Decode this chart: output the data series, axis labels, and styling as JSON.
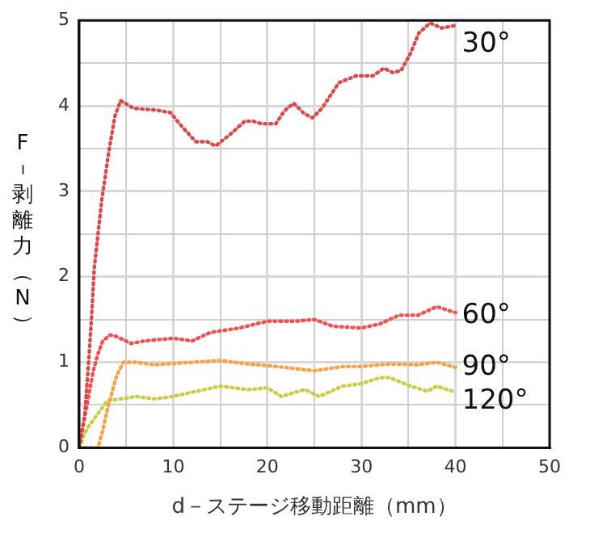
{
  "chart_data": {
    "type": "line",
    "xlabel": "d－ステージ移動距離（mm）",
    "ylabel": "F－剥離力（N）",
    "xlim": [
      0,
      50
    ],
    "xticks": [
      0,
      {
        "value": 5,
        "label": null
      },
      10,
      {
        "value": 15,
        "label": null
      },
      20,
      {
        "value": 25,
        "label": null
      },
      30,
      {
        "value": 35,
        "label": null
      },
      40,
      {
        "value": 45,
        "label": null
      },
      50
    ],
    "ylim": [
      0,
      5
    ],
    "yticks": [
      0,
      {
        "value": 0.5,
        "label": null
      },
      1,
      {
        "value": 1.5,
        "label": null
      },
      2,
      {
        "value": 2.5,
        "label": null
      },
      3,
      {
        "value": 3.5,
        "label": null
      },
      4,
      {
        "value": 4.5,
        "label": null
      },
      5
    ],
    "grid": true,
    "legend": false,
    "line_style": "dotted",
    "marker": "none",
    "series": [
      {
        "name": "30°",
        "color": "#e04848",
        "x": [
          0,
          0.6,
          1,
          1.3,
          1.6,
          2,
          2.4,
          2.8,
          3.2,
          3.8,
          4.4,
          5.8,
          8.2,
          9.7,
          10.9,
          12.4,
          13.6,
          14.5,
          16.1,
          17.6,
          18.5,
          19.4,
          20.9,
          21.8,
          22.8,
          23.9,
          24.8,
          25.8,
          27.6,
          29.4,
          31.2,
          32.4,
          33.3,
          34.2,
          35.2,
          36.1,
          37.3,
          38.5,
          40
        ],
        "values": [
          0,
          0.4,
          1,
          1.5,
          2.1,
          2.5,
          2.9,
          3.2,
          3.5,
          3.88,
          4.06,
          3.97,
          3.95,
          3.92,
          3.76,
          3.58,
          3.58,
          3.53,
          3.67,
          3.82,
          3.82,
          3.79,
          3.79,
          3.94,
          4.03,
          3.91,
          3.86,
          3.97,
          4.27,
          4.35,
          4.35,
          4.44,
          4.39,
          4.41,
          4.61,
          4.85,
          4.97,
          4.91,
          4.94
        ]
      },
      {
        "name": "60°",
        "color": "#ff4a4a",
        "x": [
          0,
          0.5,
          1,
          1.5,
          2,
          2.5,
          3.3,
          4,
          5.5,
          7,
          10,
          12,
          14,
          17,
          20,
          23,
          25,
          27,
          30,
          32,
          34,
          36,
          38,
          40
        ],
        "values": [
          0,
          0.3,
          0.6,
          0.9,
          1.1,
          1.25,
          1.32,
          1.3,
          1.22,
          1.25,
          1.28,
          1.25,
          1.35,
          1.4,
          1.48,
          1.48,
          1.5,
          1.42,
          1.4,
          1.45,
          1.55,
          1.55,
          1.65,
          1.58
        ]
      },
      {
        "name": "90°",
        "color": "#ffa040",
        "x": [
          0,
          2,
          2.5,
          3,
          3.5,
          4,
          4.7,
          6,
          8,
          12,
          15,
          18,
          21,
          25,
          28,
          30,
          33,
          36,
          38,
          40
        ],
        "values": [
          0,
          0,
          0.2,
          0.45,
          0.65,
          0.85,
          1.0,
          1.0,
          0.97,
          1.0,
          1.02,
          0.98,
          0.95,
          0.9,
          0.95,
          0.95,
          0.98,
          0.97,
          1.0,
          0.94
        ]
      },
      {
        "name": "120°",
        "color": "#c8d040",
        "x": [
          0,
          0.5,
          1,
          2,
          3,
          5,
          6,
          8,
          10,
          12,
          15,
          18,
          20,
          21.5,
          23,
          24,
          25.5,
          28,
          30,
          32,
          33,
          35,
          37,
          38,
          40
        ],
        "values": [
          0,
          0.15,
          0.25,
          0.4,
          0.55,
          0.58,
          0.6,
          0.57,
          0.6,
          0.65,
          0.72,
          0.68,
          0.7,
          0.6,
          0.65,
          0.68,
          0.6,
          0.72,
          0.75,
          0.82,
          0.82,
          0.73,
          0.66,
          0.72,
          0.65
        ]
      }
    ]
  }
}
